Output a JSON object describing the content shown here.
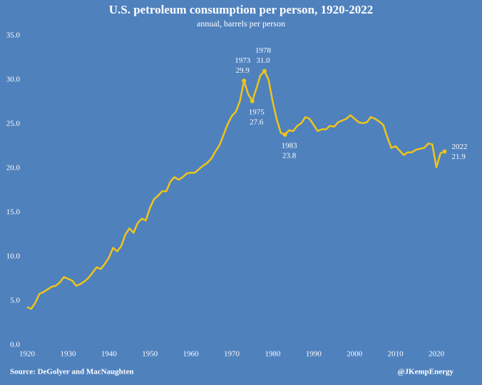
{
  "chart_data": {
    "type": "line",
    "title": "U.S. petroleum consumption per person, 1920-2022",
    "subtitle": "annual, barrels per person",
    "source": "Source: DeGolyer and MacNaughten",
    "credit": "@JKempEnergy",
    "x": [
      1920,
      1921,
      1922,
      1923,
      1924,
      1925,
      1926,
      1927,
      1928,
      1929,
      1930,
      1931,
      1932,
      1933,
      1934,
      1935,
      1936,
      1937,
      1938,
      1939,
      1940,
      1941,
      1942,
      1943,
      1944,
      1945,
      1946,
      1947,
      1948,
      1949,
      1950,
      1951,
      1952,
      1953,
      1954,
      1955,
      1956,
      1957,
      1958,
      1959,
      1960,
      1961,
      1962,
      1963,
      1964,
      1965,
      1966,
      1967,
      1968,
      1969,
      1970,
      1971,
      1972,
      1973,
      1974,
      1975,
      1976,
      1977,
      1978,
      1979,
      1980,
      1981,
      1982,
      1983,
      1984,
      1985,
      1986,
      1987,
      1988,
      1989,
      1990,
      1991,
      1992,
      1993,
      1994,
      1995,
      1996,
      1997,
      1998,
      1999,
      2000,
      2001,
      2002,
      2003,
      2004,
      2005,
      2006,
      2007,
      2008,
      2009,
      2010,
      2011,
      2012,
      2013,
      2014,
      2015,
      2016,
      2017,
      2018,
      2019,
      2020,
      2021,
      2022
    ],
    "values": [
      4.3,
      4.1,
      4.8,
      5.8,
      6.0,
      6.3,
      6.6,
      6.7,
      7.1,
      7.7,
      7.5,
      7.3,
      6.7,
      6.9,
      7.2,
      7.6,
      8.2,
      8.8,
      8.6,
      9.2,
      9.9,
      11.0,
      10.6,
      11.2,
      12.5,
      13.2,
      12.7,
      13.8,
      14.3,
      14.1,
      15.5,
      16.5,
      16.9,
      17.4,
      17.4,
      18.5,
      19.0,
      18.7,
      19.0,
      19.4,
      19.5,
      19.5,
      19.9,
      20.3,
      20.6,
      21.1,
      21.9,
      22.6,
      23.8,
      25.0,
      25.9,
      26.4,
      27.6,
      29.9,
      28.4,
      27.6,
      29.0,
      30.5,
      31.0,
      30.0,
      27.5,
      25.5,
      24.0,
      23.8,
      24.3,
      24.2,
      24.8,
      25.1,
      25.8,
      25.6,
      24.9,
      24.2,
      24.4,
      24.4,
      24.8,
      24.7,
      25.2,
      25.4,
      25.6,
      26.0,
      25.6,
      25.2,
      25.1,
      25.2,
      25.8,
      25.6,
      25.3,
      24.9,
      23.5,
      22.3,
      22.5,
      22.0,
      21.5,
      21.8,
      21.8,
      22.1,
      22.2,
      22.3,
      22.8,
      22.7,
      20.1,
      21.7,
      21.9
    ],
    "value_labels": [
      null,
      null,
      null,
      null,
      null,
      null,
      null,
      null,
      null,
      null,
      null,
      null,
      null,
      null,
      null,
      null,
      null,
      null,
      null,
      null,
      null,
      null,
      null,
      null,
      null,
      null,
      null,
      null,
      null,
      null,
      null,
      null,
      null,
      null,
      null,
      null,
      null,
      null,
      null,
      null,
      null,
      null,
      null,
      null,
      null,
      null,
      null,
      null,
      null,
      null,
      null,
      null,
      null,
      "29.9",
      null,
      "27.6",
      null,
      null,
      "31.0",
      null,
      null,
      null,
      null,
      "23.8",
      null,
      null,
      null,
      null,
      null,
      null,
      null,
      null,
      null,
      null,
      null,
      null,
      null,
      null,
      null,
      null,
      null,
      null,
      null,
      null,
      null,
      null,
      null,
      null,
      null,
      null,
      null,
      null,
      null,
      null,
      null,
      null,
      null,
      null,
      null,
      null,
      null,
      null,
      "21.9"
    ],
    "color": "#f0c419",
    "xlim": [
      1919,
      2028
    ],
    "xticks": [
      1920,
      1930,
      1940,
      1950,
      1960,
      1970,
      1980,
      1990,
      2000,
      2010,
      2020
    ],
    "ylim": [
      0,
      35
    ],
    "yticks": [
      {
        "value": 0,
        "label": "0.0"
      },
      {
        "value": 5,
        "label": "5.0"
      },
      {
        "value": 10,
        "label": "10.0"
      },
      {
        "value": 15,
        "label": "15.0"
      },
      {
        "value": 20,
        "label": "20.0"
      },
      {
        "value": 25,
        "label": "25.0"
      },
      {
        "value": 30,
        "label": "30.0"
      },
      {
        "value": 35,
        "label": "35.0"
      }
    ],
    "grid": false
  }
}
